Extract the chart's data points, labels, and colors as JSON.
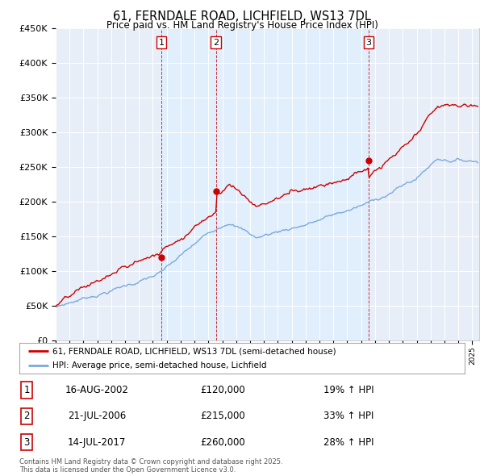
{
  "title": "61, FERNDALE ROAD, LICHFIELD, WS13 7DL",
  "subtitle": "Price paid vs. HM Land Registry's House Price Index (HPI)",
  "ylabel_ticks": [
    "£0",
    "£50K",
    "£100K",
    "£150K",
    "£200K",
    "£250K",
    "£300K",
    "£350K",
    "£400K",
    "£450K"
  ],
  "ylim": [
    0,
    450000
  ],
  "xlim_start": 1995.0,
  "xlim_end": 2025.5,
  "property_color": "#cc0000",
  "hpi_color": "#7aaadd",
  "vline_color": "#cc0000",
  "shade_color": "#ddeeff",
  "legend_property": "61, FERNDALE ROAD, LICHFIELD, WS13 7DL (semi-detached house)",
  "legend_hpi": "HPI: Average price, semi-detached house, Lichfield",
  "transactions": [
    {
      "num": 1,
      "date": "16-AUG-2002",
      "price": 120000,
      "hpi_pct": "19% ↑ HPI",
      "year": 2002.62
    },
    {
      "num": 2,
      "date": "21-JUL-2006",
      "price": 215000,
      "hpi_pct": "33% ↑ HPI",
      "year": 2006.55
    },
    {
      "num": 3,
      "date": "14-JUL-2017",
      "price": 260000,
      "hpi_pct": "28% ↑ HPI",
      "year": 2017.54
    }
  ],
  "footer": "Contains HM Land Registry data © Crown copyright and database right 2025.\nThis data is licensed under the Open Government Licence v3.0.",
  "background_color": "#ffffff",
  "plot_bg_color": "#e8eef8"
}
